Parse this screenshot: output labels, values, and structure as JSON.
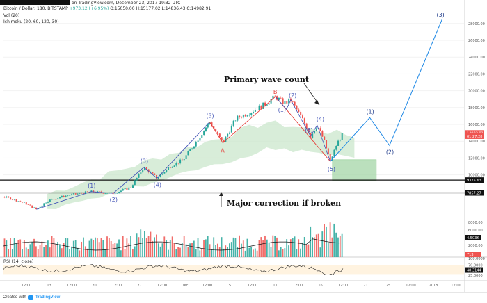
{
  "header": {
    "publisher_suffix": "on TradingView.com, December 23, 2017 19:32 UTC",
    "symbol": "Bitcoin / Dollar, 180, BITSTAMP",
    "change": "+973.12 (+6.95%)",
    "ohlc": "O:15050.00 H:15177.02 L:14836.43 C:14982.91",
    "indicator_vol": "Vol (20)",
    "indicator_ichimoku": "Ichimoku (20, 60, 120, 30)",
    "indicator_rsi": "RSI (14, close)"
  },
  "footer": {
    "created_with": "Created with",
    "brand": "TradingView"
  },
  "colors": {
    "up": "#26a69a",
    "down": "#ef5350",
    "wave_line": "#3f51b5",
    "abc_line": "#e53935",
    "cloud": "#c8e6c9",
    "box": "#a5d6a7",
    "rsi_band": "#fff3e0"
  },
  "chart_data": [
    {
      "type": "line",
      "panel": "price",
      "price_axis_ticks": [
        10000,
        12000,
        14000,
        16000,
        18000,
        20000,
        22000,
        24000,
        26000,
        28000
      ],
      "price_axis_labels": [
        "10000.00",
        "12000.00",
        "14000.00",
        "16000.00",
        "18000.00",
        "20000.00",
        "22000.00",
        "24000.00",
        "26000.00",
        "28000.00"
      ],
      "x_tick_labels": [
        "12:00",
        "13",
        "12:00",
        "20",
        "12:00",
        "27",
        "12:00",
        "Dec",
        "12:00",
        "5",
        "12:00",
        "11",
        "12:00",
        "16",
        "12:00",
        "21",
        "25",
        "12:00",
        "2018",
        "12:00"
      ],
      "price_badges": [
        {
          "label": "14982.91",
          "value": 14982.91,
          "color": "#ef5350"
        },
        {
          "label": "01:27:28",
          "value": 14600,
          "color": "#ef5350"
        },
        {
          "label": "9375.63",
          "value": 9375.63,
          "color": "#111111"
        },
        {
          "label": "7857.27",
          "value": 7857.27,
          "color": "#111111"
        }
      ],
      "support_levels": [
        9375.63,
        7857.27
      ],
      "price_path": [
        {
          "t": 0,
          "p": 7400
        },
        {
          "t": 5,
          "p": 7050
        },
        {
          "t": 10,
          "p": 6600
        },
        {
          "t": 15,
          "p": 5900
        },
        {
          "t": 20,
          "p": 6900
        },
        {
          "t": 28,
          "p": 7500
        },
        {
          "t": 40,
          "p": 8000
        },
        {
          "t": 50,
          "p": 7800
        },
        {
          "t": 58,
          "p": 8500
        },
        {
          "t": 64,
          "p": 10900
        },
        {
          "t": 70,
          "p": 9600
        },
        {
          "t": 76,
          "p": 11000
        },
        {
          "t": 82,
          "p": 11800
        },
        {
          "t": 88,
          "p": 14000
        },
        {
          "t": 94,
          "p": 16300
        },
        {
          "t": 100,
          "p": 13800
        },
        {
          "t": 106,
          "p": 16700
        },
        {
          "t": 112,
          "p": 17400
        },
        {
          "t": 118,
          "p": 18200
        },
        {
          "t": 124,
          "p": 19300
        },
        {
          "t": 128,
          "p": 18500
        },
        {
          "t": 131,
          "p": 18900
        },
        {
          "t": 134,
          "p": 17600
        },
        {
          "t": 137,
          "p": 16300
        },
        {
          "t": 140,
          "p": 14600
        },
        {
          "t": 143,
          "p": 15900
        },
        {
          "t": 146,
          "p": 14200
        },
        {
          "t": 149,
          "p": 11600
        },
        {
          "t": 152,
          "p": 13700
        },
        {
          "t": 155,
          "p": 14982.91
        }
      ],
      "wave_count": [
        {
          "label": "(1)",
          "t": 40,
          "p": 8000
        },
        {
          "label": "(2)",
          "t": 50,
          "p": 7800
        },
        {
          "label": "(3)",
          "t": 64,
          "p": 10900
        },
        {
          "label": "(4)",
          "t": 70,
          "p": 9600
        },
        {
          "label": "(5)",
          "t": 94,
          "p": 16300
        }
      ],
      "abc_count": [
        {
          "label": "A",
          "t": 100,
          "p": 13800
        },
        {
          "label": "B",
          "t": 124,
          "p": 19300
        }
      ],
      "correction_count": [
        {
          "label": "(1)",
          "t": 129,
          "p": 17800
        },
        {
          "label": "(2)",
          "t": 131,
          "p": 18900
        },
        {
          "label": "(3)",
          "t": 140,
          "p": 14600
        },
        {
          "label": "(4)",
          "t": 143,
          "p": 15900
        },
        {
          "label": "(5)",
          "t": 149,
          "p": 11600
        }
      ],
      "projection": [
        {
          "label": "(1)",
          "t": 167,
          "p": 16800
        },
        {
          "label": "(2)",
          "t": 176,
          "p": 13500
        },
        {
          "label": "(3)",
          "t": 200,
          "p": 28500
        }
      ],
      "annotations": [
        {
          "text": "Primary wave count"
        },
        {
          "text": "Major correction if broken"
        }
      ]
    },
    {
      "type": "bar",
      "panel": "volume",
      "axis_labels": [
        "8000.00",
        "6000.00",
        "4.503K",
        "2000.00"
      ],
      "badges": [
        {
          "label": "4.503K",
          "color": "#111111"
        },
        {
          "label": "713",
          "color": "#ef5350"
        }
      ]
    },
    {
      "type": "line",
      "panel": "rsi",
      "ylim": [
        0,
        100
      ],
      "axis_labels": [
        "100.0000",
        "70.0000",
        "48.3144",
        "25.0000"
      ],
      "band": [
        30,
        70
      ],
      "badges": [
        {
          "label": "48.3144",
          "color": "#111111"
        }
      ]
    }
  ]
}
